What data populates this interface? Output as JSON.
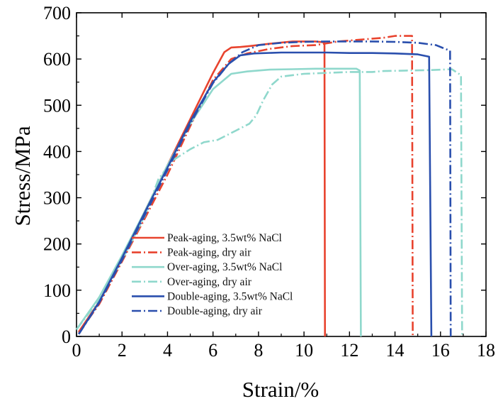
{
  "chart_data": {
    "type": "line",
    "xlabel": "Strain/%",
    "ylabel": "Stress/MPa",
    "xlim": [
      0,
      18
    ],
    "ylim": [
      0,
      700
    ],
    "xticks": [
      "0",
      "2",
      "4",
      "6",
      "8",
      "10",
      "12",
      "14",
      "16",
      "18"
    ],
    "yticks": [
      "0",
      "100",
      "200",
      "300",
      "400",
      "500",
      "600",
      "700"
    ],
    "legend_position": "lower-left",
    "grid": false,
    "series": [
      {
        "name": "Peak-aging, 3.5wt% NaCl",
        "color": "#e8432e",
        "dash": "solid",
        "points": [
          [
            0.1,
            10
          ],
          [
            1,
            75
          ],
          [
            2,
            170
          ],
          [
            3,
            270
          ],
          [
            4,
            370
          ],
          [
            5,
            470
          ],
          [
            6,
            570
          ],
          [
            6.5,
            615
          ],
          [
            6.8,
            625
          ],
          [
            7.2,
            626
          ],
          [
            7.6,
            628
          ],
          [
            8.5,
            633
          ],
          [
            9.5,
            638
          ],
          [
            10.5,
            638
          ],
          [
            10.9,
            636
          ],
          [
            10.92,
            0
          ]
        ]
      },
      {
        "name": "Peak-aging, dry air",
        "color": "#e8432e",
        "dash": "dashdot",
        "points": [
          [
            0.1,
            8
          ],
          [
            1,
            70
          ],
          [
            2,
            162
          ],
          [
            3,
            255
          ],
          [
            4,
            350
          ],
          [
            5,
            455
          ],
          [
            6,
            555
          ],
          [
            6.8,
            600
          ],
          [
            7.5,
            612
          ],
          [
            8.5,
            622
          ],
          [
            9.5,
            628
          ],
          [
            10.5,
            630
          ],
          [
            11.5,
            638
          ],
          [
            12.5,
            642
          ],
          [
            13.5,
            646
          ],
          [
            14,
            650
          ],
          [
            14.6,
            650
          ],
          [
            14.75,
            650
          ],
          [
            14.78,
            0
          ]
        ]
      },
      {
        "name": "Over-aging, 3.5wt% NaCl",
        "color": "#8fd8cc",
        "dash": "solid",
        "points": [
          [
            0,
            15
          ],
          [
            1,
            85
          ],
          [
            2,
            175
          ],
          [
            3,
            270
          ],
          [
            4,
            370
          ],
          [
            5,
            460
          ],
          [
            6,
            535
          ],
          [
            6.8,
            568
          ],
          [
            7.5,
            573
          ],
          [
            8.5,
            577
          ],
          [
            9.5,
            578
          ],
          [
            10.5,
            579
          ],
          [
            11.5,
            579
          ],
          [
            12.3,
            579
          ],
          [
            12.45,
            575
          ],
          [
            12.5,
            0
          ]
        ]
      },
      {
        "name": "Over-aging, dry air",
        "color": "#8fd8cc",
        "dash": "dashdot",
        "points": [
          [
            0,
            15
          ],
          [
            1,
            80
          ],
          [
            2,
            165
          ],
          [
            3,
            260
          ],
          [
            3.6,
            340
          ],
          [
            4.2,
            380
          ],
          [
            5,
            405
          ],
          [
            5.6,
            420
          ],
          [
            6.2,
            425
          ],
          [
            7,
            445
          ],
          [
            7.6,
            460
          ],
          [
            7.9,
            478
          ],
          [
            8.2,
            510
          ],
          [
            8.6,
            545
          ],
          [
            9,
            562
          ],
          [
            10,
            568
          ],
          [
            11,
            570
          ],
          [
            12,
            572
          ],
          [
            13,
            572
          ],
          [
            13.5,
            574
          ],
          [
            14.5,
            575
          ],
          [
            15.5,
            576
          ],
          [
            16.5,
            578
          ],
          [
            16.9,
            565
          ],
          [
            16.95,
            0
          ]
        ]
      },
      {
        "name": "Double-aging, 3.5wt% NaCl",
        "color": "#2a4fad",
        "dash": "solid",
        "points": [
          [
            0.1,
            5
          ],
          [
            1,
            75
          ],
          [
            2,
            170
          ],
          [
            3,
            268
          ],
          [
            4,
            365
          ],
          [
            5,
            465
          ],
          [
            6,
            550
          ],
          [
            6.7,
            590
          ],
          [
            7.2,
            608
          ],
          [
            7.8,
            612
          ],
          [
            9,
            614
          ],
          [
            10,
            614
          ],
          [
            11,
            614
          ],
          [
            12,
            613
          ],
          [
            13,
            613
          ],
          [
            14,
            612
          ],
          [
            15,
            610
          ],
          [
            15.5,
            605
          ],
          [
            15.6,
            0
          ]
        ]
      },
      {
        "name": "Double-aging, dry air",
        "color": "#2a4fad",
        "dash": "dashdot",
        "points": [
          [
            0.1,
            5
          ],
          [
            1,
            73
          ],
          [
            2,
            165
          ],
          [
            3,
            262
          ],
          [
            4,
            360
          ],
          [
            5,
            460
          ],
          [
            6,
            548
          ],
          [
            6.7,
            590
          ],
          [
            7.3,
            615
          ],
          [
            8,
            630
          ],
          [
            9,
            635
          ],
          [
            10,
            637
          ],
          [
            11,
            638
          ],
          [
            12,
            638
          ],
          [
            13,
            638
          ],
          [
            14,
            637
          ],
          [
            15,
            635
          ],
          [
            15.8,
            630
          ],
          [
            16.2,
            622
          ],
          [
            16.42,
            618
          ],
          [
            16.45,
            0
          ]
        ]
      }
    ]
  }
}
